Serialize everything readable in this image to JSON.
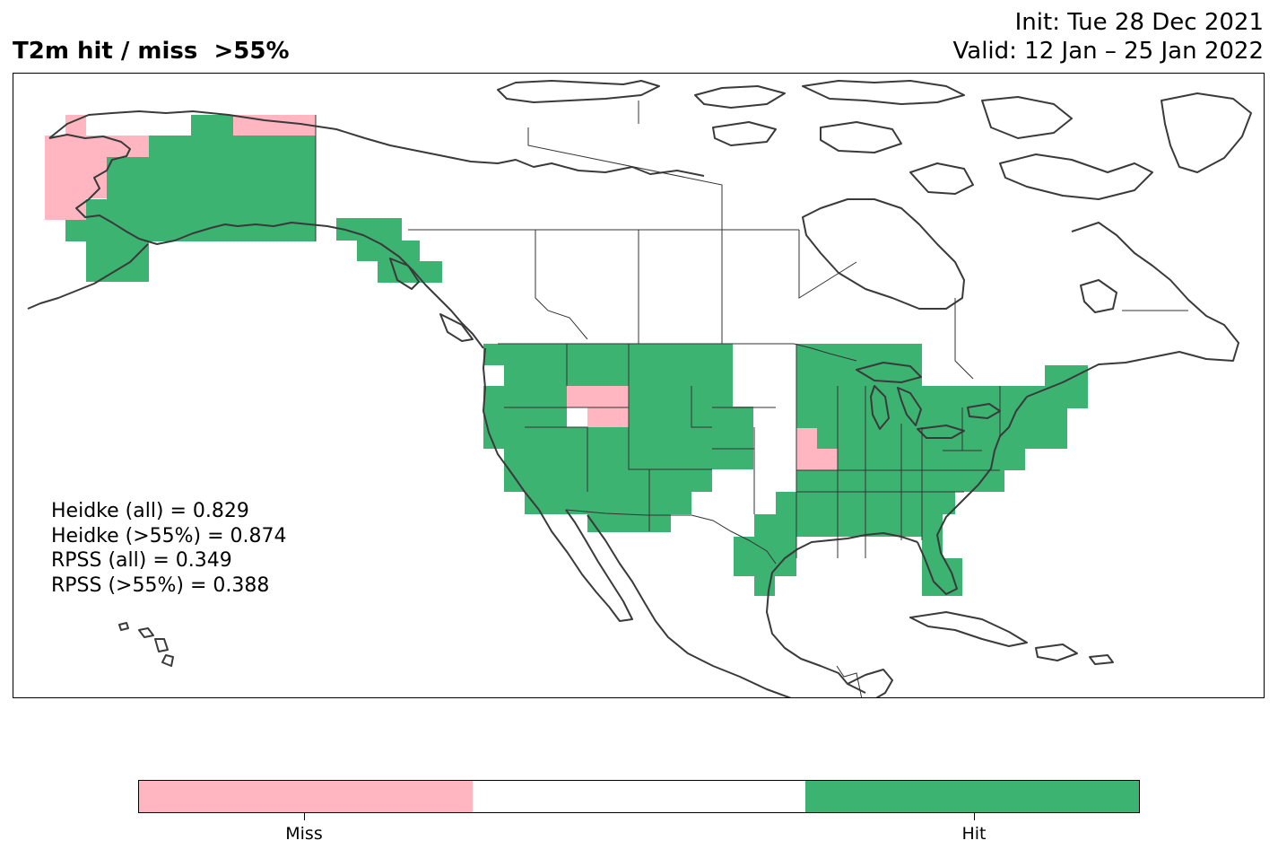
{
  "header": {
    "title": "T2m hit / miss  >55%",
    "init": "Init: Tue 28 Dec 2021",
    "valid": "Valid: 12 Jan – 25 Jan 2022"
  },
  "stats": {
    "heidke_all": "Heidke (all) = 0.829",
    "heidke_55": "Heidke (>55%) = 0.874",
    "rpss_all": "RPSS (all) = 0.349",
    "rpss_55": "RPSS (>55%) = 0.388"
  },
  "colorbar": {
    "miss_label": "Miss",
    "hit_label": "Hit",
    "miss_color": "#ffb6c1",
    "neutral_color": "#ffffff",
    "hit_color": "#3cb371"
  },
  "map": {
    "hit_color": "#3cb371",
    "miss_color": "#ffb6c1",
    "coast_color": "#3a3a3a",
    "border_color": "#333333"
  }
}
